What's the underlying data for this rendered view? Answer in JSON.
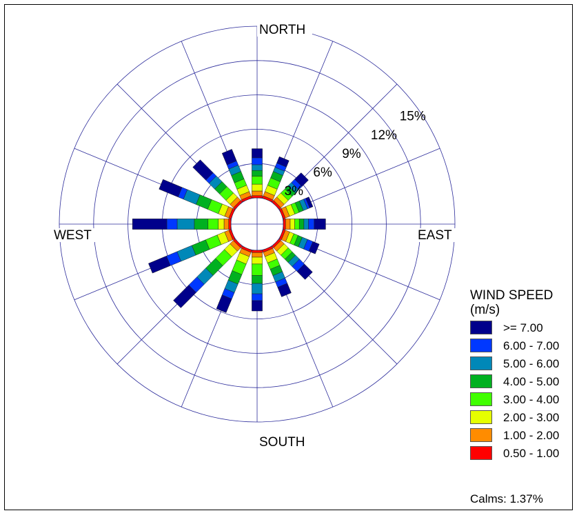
{
  "chart_data": {
    "type": "wind-rose",
    "directions": [
      "N",
      "NNE",
      "NE",
      "ENE",
      "E",
      "ESE",
      "SE",
      "SSE",
      "S",
      "SSW",
      "SW",
      "WSW",
      "W",
      "WNW",
      "NW",
      "NNW"
    ],
    "compass_labels": {
      "north": "NORTH",
      "east": "EAST",
      "south": "SOUTH",
      "west": "WEST"
    },
    "ring_labels": [
      "3%",
      "6%",
      "9%",
      "12%",
      "15%"
    ],
    "ring_values_percent": [
      3,
      6,
      9,
      12,
      15
    ],
    "radial_max_percent": 15,
    "legend_title_line1": "WIND SPEED",
    "legend_title_line2": "(m/s)",
    "bins": [
      {
        "label": "0.50 - 1.00",
        "color": "#ff0000"
      },
      {
        "label": "1.00 - 2.00",
        "color": "#ff8c00"
      },
      {
        "label": "2.00 - 3.00",
        "color": "#e6ff00"
      },
      {
        "label": "3.00 - 4.00",
        "color": "#40ff00"
      },
      {
        "label": "4.00 - 5.00",
        "color": "#00b020"
      },
      {
        "label": "5.00 - 6.00",
        "color": "#0088b8"
      },
      {
        "label": "6.00 - 7.00",
        "color": "#0038ff"
      },
      {
        "label": ">= 7.00",
        "color": "#00008b"
      }
    ],
    "legend_order": [
      ">= 7.00",
      "6.00 - 7.00",
      "5.00 - 6.00",
      "4.00 - 5.00",
      "3.00 - 4.00",
      "2.00 - 3.00",
      "1.00 - 2.00",
      "0.50 - 1.00"
    ],
    "legend_order_colors": [
      "#00008b",
      "#0038ff",
      "#0088b8",
      "#00b020",
      "#40ff00",
      "#e6ff00",
      "#ff8c00",
      "#ff0000"
    ],
    "cumulative_percent_by_direction": {
      "N": [
        0.2,
        0.6,
        1.2,
        1.9,
        2.4,
        2.9,
        3.5,
        4.3
      ],
      "NNE": [
        0.2,
        0.6,
        1.2,
        1.9,
        2.5,
        2.9,
        3.3,
        3.9
      ],
      "NE": [
        0.2,
        0.6,
        1.1,
        1.6,
        2.0,
        2.4,
        2.8,
        3.6
      ],
      "ENE": [
        0.2,
        0.6,
        1.1,
        1.5,
        1.9,
        2.3,
        2.5,
        2.8
      ],
      "E": [
        0.2,
        0.6,
        1.0,
        1.4,
        1.8,
        2.2,
        2.7,
        3.7
      ],
      "ESE": [
        0.2,
        0.6,
        1.0,
        1.4,
        1.8,
        2.3,
        2.8,
        3.4
      ],
      "SE": [
        0.2,
        0.6,
        1.1,
        1.6,
        2.0,
        2.5,
        3.1,
        4.1
      ],
      "SSE": [
        0.2,
        0.6,
        1.2,
        1.8,
        2.4,
        3.0,
        3.5,
        4.4
      ],
      "S": [
        0.2,
        0.6,
        1.2,
        2.2,
        2.9,
        3.8,
        4.4,
        5.3
      ],
      "SSW": [
        0.2,
        0.6,
        1.3,
        2.3,
        3.2,
        4.0,
        4.6,
        5.9
      ],
      "SW": [
        0.2,
        0.6,
        1.3,
        2.4,
        3.6,
        4.7,
        5.7,
        7.6
      ],
      "WSW": [
        0.2,
        0.6,
        1.3,
        2.4,
        3.7,
        5.1,
        6.1,
        7.8
      ],
      "W": [
        0.2,
        0.6,
        1.1,
        2.0,
        3.2,
        4.7,
        5.6,
        8.6
      ],
      "WNW": [
        0.2,
        0.6,
        1.2,
        2.2,
        3.3,
        4.5,
        5.0,
        6.8
      ],
      "NW": [
        0.2,
        0.6,
        1.1,
        1.9,
        2.5,
        3.2,
        3.6,
        5.2
      ],
      "NNW": [
        0.2,
        0.6,
        1.2,
        1.8,
        2.5,
        3.1,
        3.5,
        4.6
      ]
    },
    "calms_text": "Calms: 1.37%"
  }
}
